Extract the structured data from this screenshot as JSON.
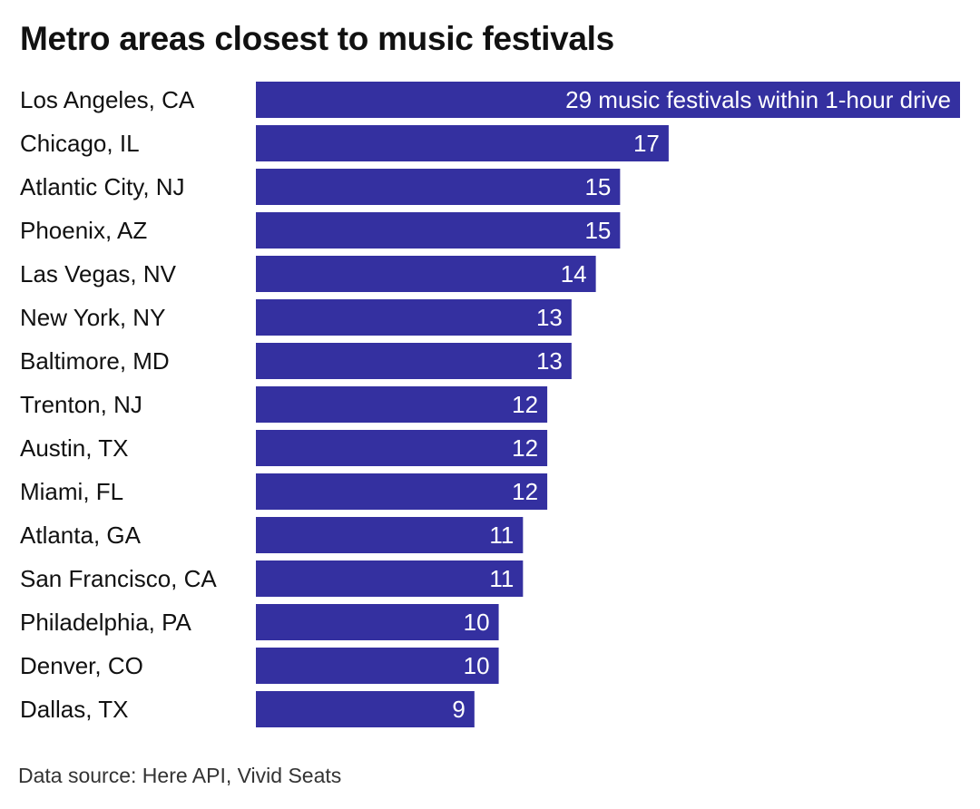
{
  "chart_data": {
    "type": "bar",
    "orientation": "horizontal",
    "title": "Metro areas closest to music festivals",
    "categories": [
      "Los Angeles, CA",
      "Chicago, IL",
      "Atlantic City, NJ",
      "Phoenix, AZ",
      "Las Vegas, NV",
      "New York, NY",
      "Baltimore, MD",
      "Trenton, NJ",
      "Austin, TX",
      "Miami, FL",
      "Atlanta, GA",
      "San Francisco, CA",
      "Philadelphia, PA",
      "Denver, CO",
      "Dallas, TX"
    ],
    "values": [
      29,
      17,
      15,
      15,
      14,
      13,
      13,
      12,
      12,
      12,
      11,
      11,
      10,
      10,
      9
    ],
    "data_labels": [
      "29 music festivals within 1-hour drive",
      "17",
      "15",
      "15",
      "14",
      "13",
      "13",
      "12",
      "12",
      "12",
      "11",
      "11",
      "10",
      "10",
      "9"
    ],
    "xlim": [
      0,
      29
    ],
    "grid": false,
    "bar_color": "#3430a0",
    "label_color": "#ffffff"
  },
  "source": "Data source: Here API, Vivid Seats"
}
